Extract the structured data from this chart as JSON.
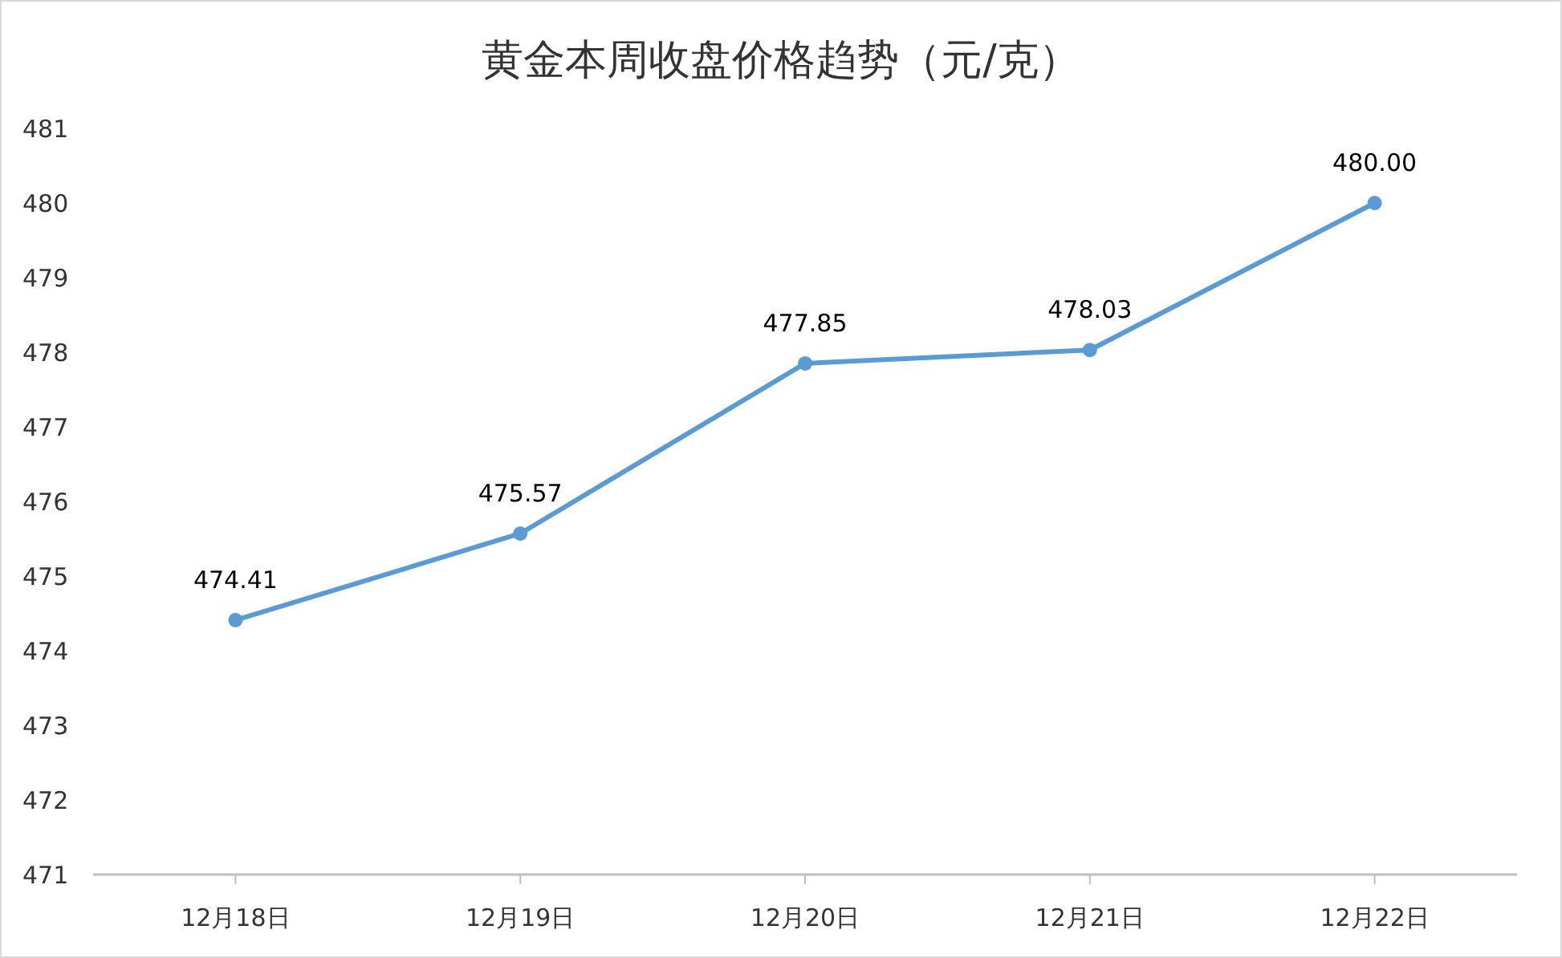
{
  "chart_data": {
    "type": "line",
    "title": "黄金本周收盘价格趋势（元/克）",
    "categories": [
      "12月18日",
      "12月19日",
      "12月20日",
      "12月21日",
      "12月22日"
    ],
    "series": [
      {
        "color": "#5b9bd5",
        "values": [
          474.41,
          475.57,
          477.85,
          478.03,
          480.0
        ]
      }
    ],
    "value_labels": [
      "474.41",
      "475.57",
      "477.85",
      "478.03",
      "480.00"
    ],
    "ylim": [
      471,
      481
    ],
    "yticks": [
      471,
      472,
      473,
      474,
      475,
      476,
      477,
      478,
      479,
      480,
      481
    ],
    "marker": "circle",
    "line_style": "solid"
  }
}
